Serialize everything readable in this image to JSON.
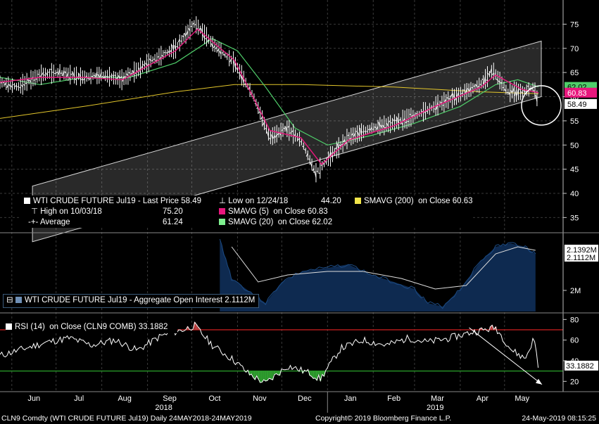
{
  "chart_data": [
    {
      "type": "line",
      "panel": "price",
      "ylim": [
        32,
        80
      ],
      "y_ticks": [
        35,
        40,
        45,
        50,
        55,
        60,
        65,
        70,
        75
      ],
      "x_start": "2018-05-24",
      "x_end": "2019-05-24",
      "series": [
        {
          "name": "WTI CRUDE FUTURE Jul19",
          "color": "#ffffff",
          "x": [
            "2018-05-24",
            "2018-06-05",
            "2018-06-20",
            "2018-07-03",
            "2018-07-20",
            "2018-08-01",
            "2018-08-15",
            "2018-09-04",
            "2018-09-20",
            "2018-10-03",
            "2018-10-15",
            "2018-10-30",
            "2018-11-12",
            "2018-11-23",
            "2018-12-04",
            "2018-12-14",
            "2018-12-24",
            "2019-01-04",
            "2019-01-15",
            "2019-01-31",
            "2019-02-15",
            "2019-03-01",
            "2019-03-15",
            "2019-04-01",
            "2019-04-15",
            "2019-04-23",
            "2019-05-03",
            "2019-05-13",
            "2019-05-21",
            "2019-05-24"
          ],
          "y": [
            63.0,
            62.0,
            64.5,
            65.0,
            64.0,
            64.5,
            63.5,
            67.5,
            70.0,
            75.2,
            71.0,
            67.0,
            60.0,
            51.5,
            53.5,
            51.0,
            44.2,
            48.0,
            51.5,
            53.5,
            54.5,
            56.0,
            58.0,
            60.5,
            62.5,
            65.5,
            61.0,
            61.0,
            62.0,
            58.49
          ]
        },
        {
          "name": "SMAVG (5)",
          "color": "#e8177d",
          "x": [
            "2018-05-24",
            "2018-06-20",
            "2018-07-20",
            "2018-08-15",
            "2018-09-20",
            "2018-10-05",
            "2018-10-30",
            "2018-11-23",
            "2018-12-14",
            "2018-12-28",
            "2019-01-15",
            "2019-02-15",
            "2019-03-15",
            "2019-04-15",
            "2019-04-25",
            "2019-05-13",
            "2019-05-24"
          ],
          "y": [
            63.0,
            64.0,
            64.0,
            63.5,
            69.5,
            74.0,
            67.5,
            53.0,
            51.5,
            46.0,
            51.0,
            54.0,
            58.0,
            62.0,
            64.5,
            61.5,
            60.83
          ]
        },
        {
          "name": "SMAVG (20)",
          "color": "#4fce6a",
          "x": [
            "2018-05-24",
            "2018-06-20",
            "2018-07-20",
            "2018-08-20",
            "2018-09-20",
            "2018-10-15",
            "2018-11-01",
            "2018-11-20",
            "2018-12-10",
            "2019-01-01",
            "2019-01-31",
            "2019-03-01",
            "2019-04-01",
            "2019-04-25",
            "2019-05-10",
            "2019-05-24"
          ],
          "y": [
            64.0,
            62.5,
            64.0,
            64.0,
            67.0,
            72.0,
            69.5,
            62.0,
            53.5,
            50.0,
            52.0,
            54.5,
            58.0,
            62.5,
            63.5,
            62.02
          ]
        },
        {
          "name": "SMAVG (200)",
          "color": "#e3c62b",
          "x": [
            "2018-05-24",
            "2018-07-20",
            "2018-09-20",
            "2018-10-30",
            "2018-12-14",
            "2019-02-15",
            "2019-04-15",
            "2019-05-24"
          ],
          "y": [
            55.5,
            58.0,
            61.0,
            62.5,
            62.5,
            62.0,
            61.0,
            60.63
          ]
        }
      ],
      "legend": {
        "ticker": "WTI CRUDE FUTURE Jul19 - Last Price",
        "last_price": "58.49",
        "low_label": "Low on 12/24/18",
        "low_value": "44.20",
        "high_label": "High on 10/03/18",
        "high_value": "75.20",
        "avg_label": "Average",
        "avg_value": "61.24",
        "sma5_label": "SMAVG (5)",
        "sma5_on": "on Close",
        "sma5_value": "60.83",
        "sma20_label": "SMAVG (20)",
        "sma20_on": "on Close",
        "sma20_value": "62.02",
        "sma200_label": "SMAVG (200)",
        "sma200_on": "on Close",
        "sma200_value": "60.63"
      },
      "value_tags": [
        {
          "value": 62.02,
          "text": "62.02",
          "color": "#4fce6a",
          "text_color": "#000000"
        },
        {
          "value": 60.83,
          "text": "60.83",
          "color": "#e8177d",
          "text_color": "#ffffff"
        },
        {
          "value": 58.49,
          "text": "58.49",
          "color": "#ffffff",
          "text_color": "#000000"
        }
      ]
    },
    {
      "type": "area",
      "panel": "open-interest",
      "y_ticks": [
        "2M"
      ],
      "series": [
        {
          "name": "WTI CRUDE FUTURE Jul19 - Aggregate Open Interest",
          "value": "2.1112M",
          "color": "#0e2a50"
        }
      ],
      "value_tags": [
        {
          "text": "2.1392M",
          "color": "#ffffff",
          "text_color": "#000000"
        },
        {
          "text": "2.1112M",
          "color": "#ffffff",
          "text_color": "#000000"
        }
      ]
    },
    {
      "type": "line",
      "panel": "rsi",
      "ylim": [
        10,
        85
      ],
      "y_ticks": [
        20,
        40,
        60,
        80
      ],
      "levels": [
        70,
        30
      ],
      "series": [
        {
          "name": "RSI (14)",
          "color": "#ffffff",
          "x": [
            "2018-05-24",
            "2018-06-10",
            "2018-06-25",
            "2018-07-10",
            "2018-07-25",
            "2018-08-10",
            "2018-08-25",
            "2018-09-10",
            "2018-09-25",
            "2018-10-03",
            "2018-10-15",
            "2018-10-30",
            "2018-11-08",
            "2018-11-20",
            "2018-12-05",
            "2018-12-20",
            "2018-12-27",
            "2019-01-10",
            "2019-01-25",
            "2019-02-10",
            "2019-02-25",
            "2019-03-10",
            "2019-03-25",
            "2019-04-10",
            "2019-04-25",
            "2019-05-06",
            "2019-05-15",
            "2019-05-21",
            "2019-05-24"
          ],
          "y": [
            45,
            52,
            58,
            62,
            55,
            60,
            50,
            64,
            70,
            74,
            55,
            40,
            28,
            18,
            35,
            28,
            22,
            52,
            60,
            55,
            62,
            58,
            62,
            68,
            72,
            50,
            42,
            62,
            33.19
          ]
        }
      ],
      "legend": {
        "label": "RSI (14)",
        "on": "on Close (CLN9 COMB)",
        "value": "33.1882"
      },
      "value_tag": {
        "text": "33.1882",
        "color": "#ffffff",
        "text_color": "#000000"
      }
    }
  ],
  "x_axis": {
    "months": [
      "Jun",
      "Jul",
      "Aug",
      "Sep",
      "Oct",
      "Nov",
      "Dec",
      "Jan",
      "Feb",
      "Mar",
      "Apr",
      "May"
    ],
    "years": [
      "2018",
      "2019"
    ]
  },
  "footer": {
    "left": "CLN9 Comdty (WTI CRUDE FUTURE  Jul19)  Daily 24MAY2018-24MAY2019",
    "center": "Copyright© 2019 Bloomberg Finance L.P.",
    "right": "24-May-2019 08:15:25"
  }
}
